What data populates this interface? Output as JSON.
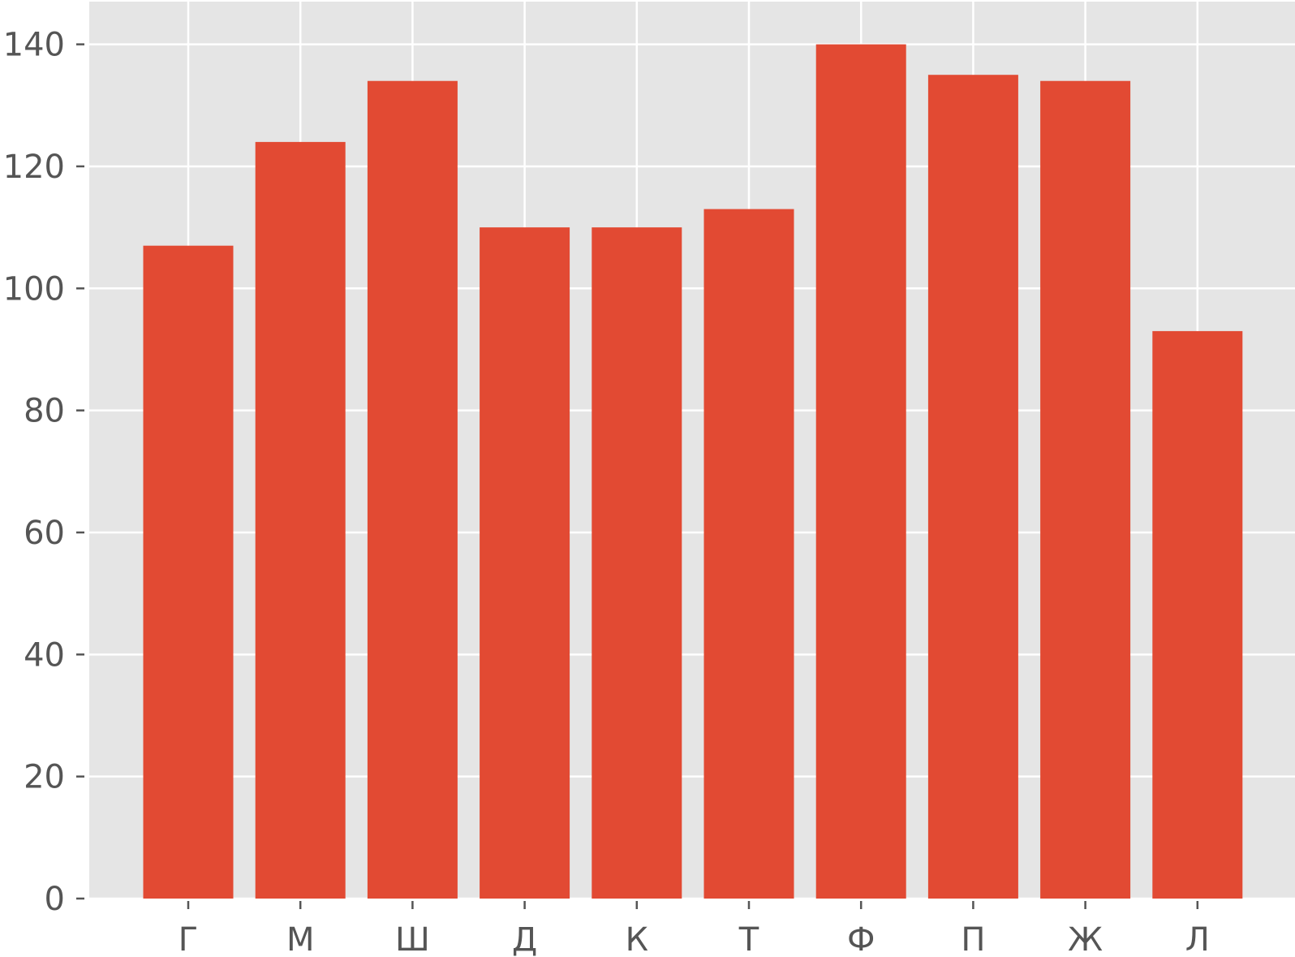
{
  "chart_data": {
    "type": "bar",
    "categories": [
      "Г",
      "М",
      "Ш",
      "Д",
      "К",
      "Т",
      "Ф",
      "П",
      "Ж",
      "Л"
    ],
    "values": [
      107,
      124,
      134,
      110,
      110,
      113,
      140,
      135,
      134,
      93
    ],
    "title": "",
    "xlabel": "",
    "ylabel": "",
    "ylim": [
      0,
      147
    ],
    "yticks": [
      "0",
      "20",
      "40",
      "60",
      "80",
      "100",
      "120",
      "140"
    ],
    "grid": true,
    "colors": {
      "bar": "#E24A33",
      "background": "#E5E5E5",
      "grid": "#FFFFFF",
      "text": "#555555"
    }
  }
}
